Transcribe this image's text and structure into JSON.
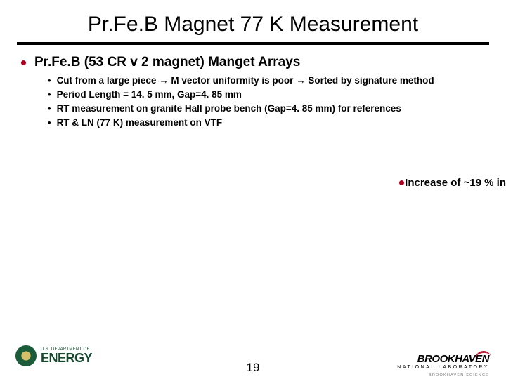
{
  "title": "Pr.Fe.B Magnet 77 K Measurement",
  "main_bullet": "Pr.Fe.B (53 CR v 2 magnet) Manget Arrays",
  "sub_bullets": [
    "Cut from a large piece → M vector uniformity is poor → Sorted by signature method",
    "Period Length = 14. 5 mm, Gap=4. 85 mm",
    "RT measurement on granite Hall probe bench (Gap=4. 85 mm) for references",
    "RT & LN (77 K) measurement on VTF"
  ],
  "increase_note": "Increase of ~19 % in ",
  "page_number": "19",
  "colors": {
    "bullet_red": "#ab0020",
    "doe_green": "#154a2e",
    "bnl_red": "#c41e3a",
    "text": "#000000",
    "bg": "#ffffff"
  },
  "logos": {
    "doe_small": "U.S. DEPARTMENT OF",
    "doe_big": "ENERGY",
    "bnl_main": "BROOKHAVEN",
    "bnl_sub": "NATIONAL LABORATORY",
    "bnl_sci": "BROOKHAVEN SCIENCE"
  }
}
